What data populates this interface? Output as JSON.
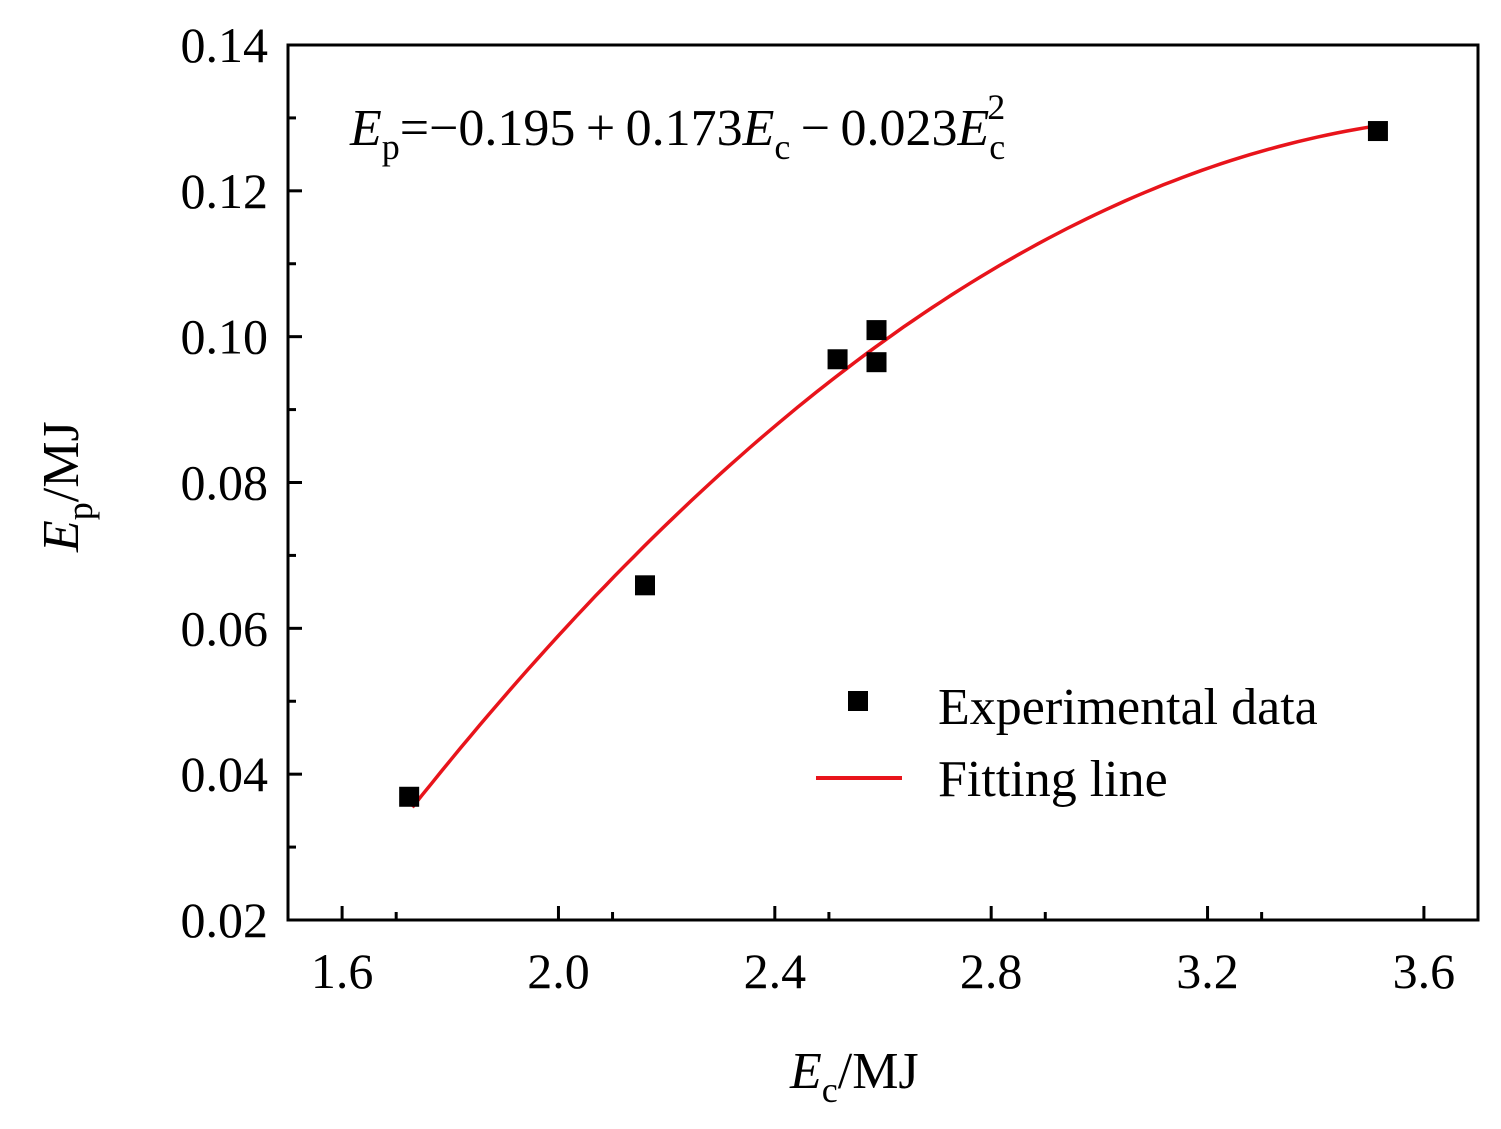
{
  "chart_data": {
    "type": "scatter",
    "xlabel": {
      "main": "E",
      "sub": "c",
      "unit": "/MJ"
    },
    "ylabel": {
      "main": "E",
      "sub": "p",
      "unit": "/MJ"
    },
    "xlim": [
      1.5,
      3.7
    ],
    "ylim": [
      0.02,
      0.14
    ],
    "xticks": [
      "1.6",
      "2.0",
      "2.4",
      "2.8",
      "3.2",
      "3.6"
    ],
    "yticks": [
      "0.02",
      "0.04",
      "0.06",
      "0.08",
      "0.10",
      "0.12",
      "0.14"
    ],
    "grid": false,
    "legend_placement": "bottom-right",
    "annotation": {
      "parts": [
        "E",
        "p",
        "=−0.195 + 0.173",
        "E",
        "c",
        " − 0.023",
        "E",
        "c",
        "2"
      ]
    },
    "series": [
      {
        "name": "Experimental data",
        "kind": "scatter",
        "marker": "square",
        "color": "#000000",
        "x": [
          1.724,
          2.16,
          2.516,
          2.588,
          2.588,
          3.515
        ],
        "y": [
          0.0369,
          0.0659,
          0.0969,
          0.1009,
          0.0965,
          0.1282
        ]
      },
      {
        "name": "Fitting line",
        "kind": "line",
        "color": "#e8141b",
        "coefficients": [
          -0.195,
          0.173,
          -0.023
        ],
        "x_range": [
          1.73,
          3.51
        ]
      }
    ]
  }
}
